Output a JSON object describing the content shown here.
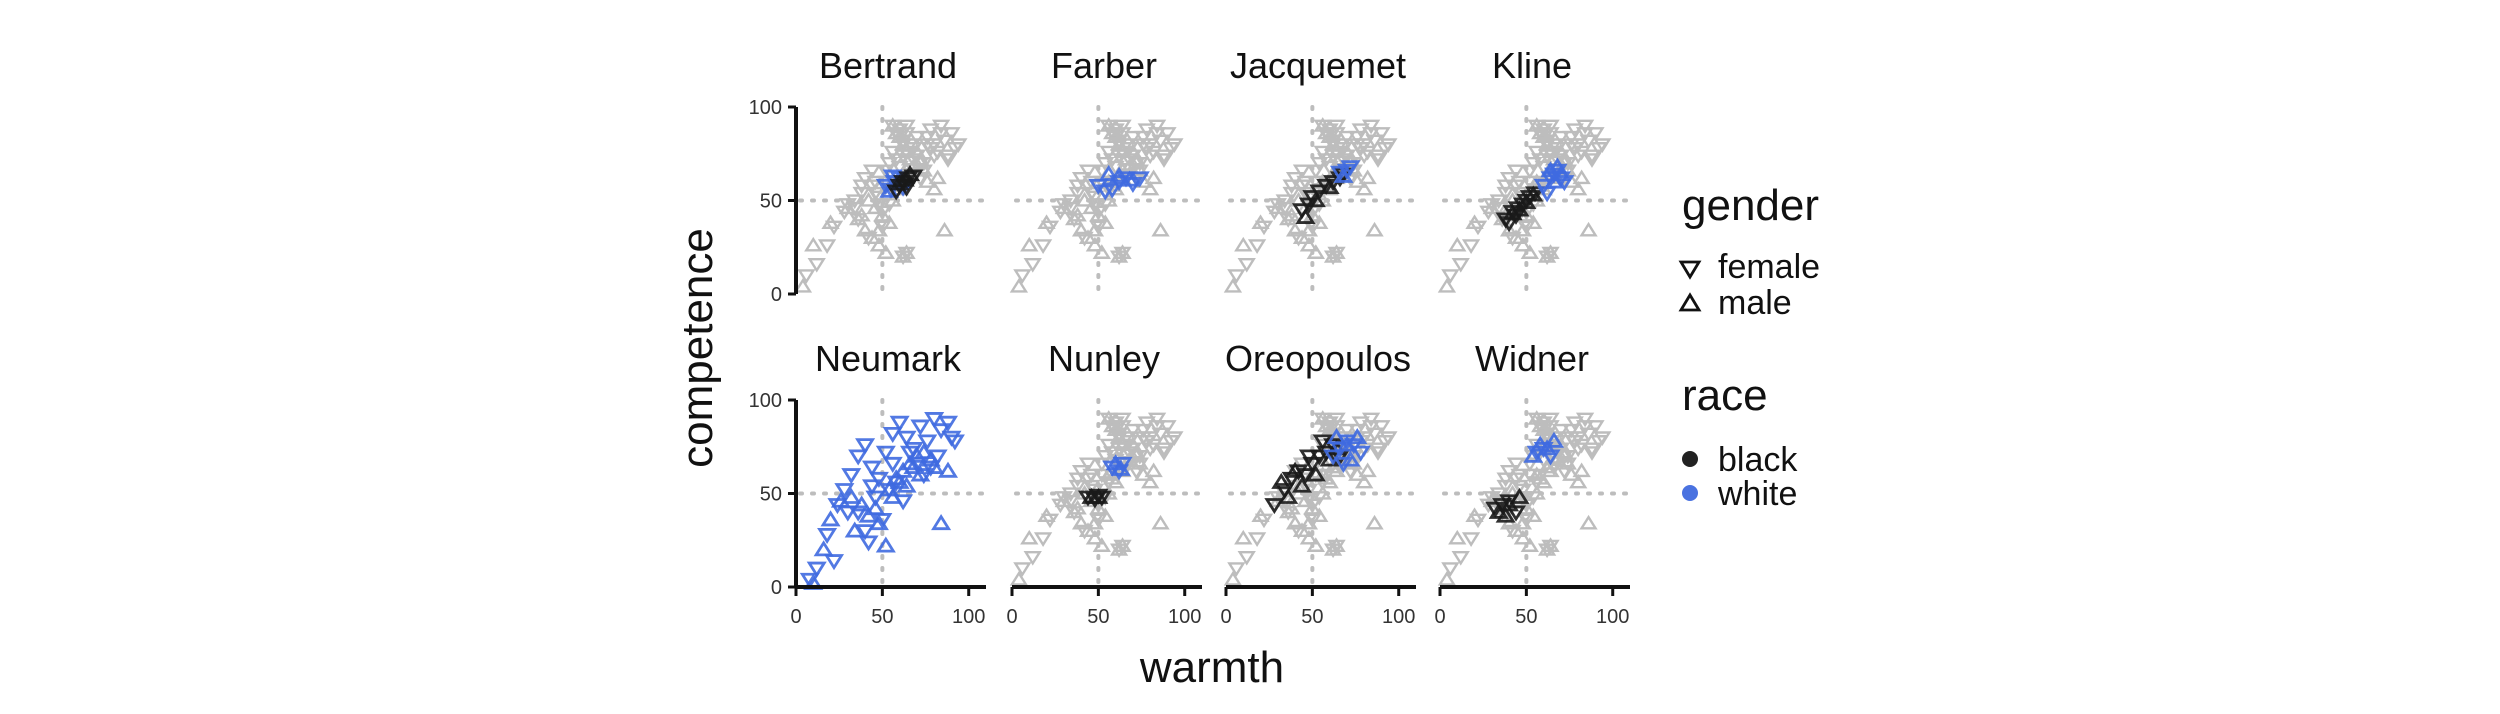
{
  "chart_data": {
    "type": "scatter",
    "xlabel": "warmth",
    "ylabel": "competence",
    "xlim": [
      0,
      110
    ],
    "ylim": [
      0,
      100
    ],
    "xticks": [
      0,
      50,
      100
    ],
    "yticks": [
      0,
      50,
      100
    ],
    "reference_lines": {
      "x": 50,
      "y": 50,
      "style": "dotted"
    },
    "grid": false,
    "legend_position": "right",
    "background_color": "#bdbdbd",
    "panel_labels": [
      "Bertrand",
      "Farber",
      "Jacquemet",
      "Kline",
      "Neumark",
      "Nunley",
      "Oreopoulos",
      "Widner"
    ],
    "panels": [
      {
        "title": "Bertrand",
        "highlight": [
          {
            "race": "white",
            "gender": "female",
            "x": [
              52,
              55,
              57,
              60,
              62,
              56
            ],
            "y": [
              58,
              56,
              60,
              62,
              57,
              63
            ]
          },
          {
            "race": "white",
            "gender": "male",
            "x": [
              54,
              58,
              61
            ],
            "y": [
              55,
              59,
              60
            ]
          },
          {
            "race": "black",
            "gender": "female",
            "x": [
              58,
              62,
              65,
              68,
              60,
              64
            ],
            "y": [
              55,
              60,
              62,
              63,
              58,
              57
            ]
          },
          {
            "race": "black",
            "gender": "male",
            "x": [
              60,
              63,
              66
            ],
            "y": [
              59,
              61,
              64
            ]
          }
        ]
      },
      {
        "title": "Farber",
        "highlight": [
          {
            "race": "white",
            "gender": "female",
            "x": [
              50,
              54,
              58,
              62,
              66,
              70,
              74
            ],
            "y": [
              58,
              55,
              56,
              60,
              62,
              59,
              62
            ]
          },
          {
            "race": "white",
            "gender": "male",
            "x": [
              56,
              62,
              68
            ],
            "y": [
              64,
              63,
              61
            ]
          }
        ]
      },
      {
        "title": "Jacquemet",
        "highlight": [
          {
            "race": "black",
            "gender": "female",
            "x": [
              44,
              48,
              50,
              54,
              58,
              62,
              66,
              68
            ],
            "y": [
              45,
              48,
              52,
              55,
              58,
              60,
              62,
              64
            ]
          },
          {
            "race": "black",
            "gender": "male",
            "x": [
              46,
              52,
              60
            ],
            "y": [
              41,
              50,
              57
            ]
          },
          {
            "race": "white",
            "gender": "female",
            "x": [
              66,
              70,
              72
            ],
            "y": [
              65,
              66,
              68
            ]
          },
          {
            "race": "white",
            "gender": "male",
            "x": [
              68
            ],
            "y": [
              63
            ]
          }
        ]
      },
      {
        "title": "Kline",
        "highlight": [
          {
            "race": "black",
            "gender": "female",
            "x": [
              38,
              42,
              45,
              48,
              50,
              52,
              55,
              40,
              44
            ],
            "y": [
              40,
              44,
              46,
              48,
              50,
              52,
              54,
              38,
              42
            ]
          },
          {
            "race": "black",
            "gender": "male",
            "x": [
              42,
              46,
              50,
              54
            ],
            "y": [
              43,
              45,
              49,
              53
            ]
          },
          {
            "race": "white",
            "gender": "female",
            "x": [
              60,
              64,
              66,
              68,
              70,
              72,
              62
            ],
            "y": [
              58,
              62,
              64,
              66,
              62,
              60,
              54
            ]
          },
          {
            "race": "white",
            "gender": "male",
            "x": [
              64,
              68,
              70,
              66
            ],
            "y": [
              66,
              68,
              64,
              60
            ]
          }
        ]
      },
      {
        "title": "Neumark",
        "highlight": [
          {
            "race": "white",
            "gender": "female",
            "x": [
              8,
              12,
              18,
              24,
              28,
              32,
              36,
              40,
              44,
              48,
              52,
              56,
              60,
              64,
              68,
              72,
              76,
              80,
              84,
              88,
              92,
              36,
              46,
              58,
              70,
              82,
              40,
              50,
              62,
              74,
              30,
              44,
              56,
              66,
              78,
              90,
              22,
              42,
              54
            ],
            "y": [
              4,
              10,
              28,
              44,
              52,
              60,
              70,
              76,
              64,
              58,
              72,
              82,
              88,
              80,
              74,
              86,
              78,
              90,
              84,
              88,
              78,
              40,
              48,
              56,
              66,
              70,
              30,
              36,
              46,
              60,
              40,
              54,
              66,
              72,
              64,
              80,
              14,
              24,
              52
            ]
          },
          {
            "race": "white",
            "gender": "male",
            "x": [
              10,
              16,
              20,
              26,
              32,
              38,
              42,
              48,
              54,
              58,
              62,
              66,
              70,
              74,
              78,
              84,
              88,
              34,
              46,
              56,
              64,
              72,
              80,
              52,
              60,
              68
            ],
            "y": [
              2,
              20,
              36,
              46,
              48,
              44,
              38,
              34,
              52,
              58,
              62,
              66,
              70,
              72,
              68,
              34,
              62,
              30,
              42,
              48,
              54,
              60,
              64,
              22,
              56,
              64
            ]
          }
        ]
      },
      {
        "title": "Nunley",
        "highlight": [
          {
            "race": "white",
            "gender": "female",
            "x": [
              58,
              62,
              64
            ],
            "y": [
              64,
              62,
              66
            ]
          },
          {
            "race": "white",
            "gender": "male",
            "x": [
              60,
              63
            ],
            "y": [
              66,
              63
            ]
          },
          {
            "race": "black",
            "gender": "female",
            "x": [
              44,
              48,
              50,
              52
            ],
            "y": [
              48,
              47,
              49,
              48
            ]
          },
          {
            "race": "black",
            "gender": "male",
            "x": [
              46,
              50
            ],
            "y": [
              48,
              48
            ]
          }
        ]
      },
      {
        "title": "Oreopoulos",
        "highlight": [
          {
            "race": "black",
            "gender": "female",
            "x": [
              28,
              34,
              38,
              42,
              46,
              50,
              54,
              58,
              62,
              66,
              48,
              56
            ],
            "y": [
              44,
              52,
              58,
              62,
              60,
              66,
              70,
              72,
              76,
              70,
              70,
              78
            ]
          },
          {
            "race": "black",
            "gender": "male",
            "x": [
              32,
              40,
              44,
              52,
              60,
              64,
              36
            ],
            "y": [
              56,
              62,
              54,
              60,
              68,
              74,
              48
            ]
          },
          {
            "race": "white",
            "gender": "female",
            "x": [
              62,
              66,
              70,
              74,
              78,
              68
            ],
            "y": [
              70,
              74,
              78,
              76,
              72,
              66
            ]
          },
          {
            "race": "white",
            "gender": "male",
            "x": [
              64,
              70,
              76,
              72
            ],
            "y": [
              80,
              76,
              80,
              68
            ]
          }
        ]
      },
      {
        "title": "Widner",
        "highlight": [
          {
            "race": "black",
            "gender": "female",
            "x": [
              32,
              36,
              40,
              44
            ],
            "y": [
              42,
              44,
              46,
              40
            ]
          },
          {
            "race": "black",
            "gender": "male",
            "x": [
              34,
              40,
              46,
              38
            ],
            "y": [
              40,
              44,
              48,
              38
            ]
          },
          {
            "race": "white",
            "gender": "female",
            "x": [
              56,
              60,
              64
            ],
            "y": [
              72,
              74,
              70
            ]
          },
          {
            "race": "white",
            "gender": "male",
            "x": [
              54,
              58,
              62,
              66
            ],
            "y": [
              70,
              76,
              74,
              78
            ]
          }
        ]
      }
    ],
    "background_points": {
      "female": {
        "x": [
          6,
          12,
          18,
          22,
          28,
          34,
          38,
          40,
          44,
          46,
          48,
          50,
          52,
          54,
          56,
          58,
          60,
          62,
          64,
          66,
          68,
          70,
          72,
          74,
          76,
          78,
          80,
          82,
          84,
          86,
          88,
          90,
          92,
          94,
          60,
          64,
          70,
          76,
          50,
          42,
          36,
          30,
          56,
          66,
          74,
          80,
          58,
          48,
          44,
          38,
          34,
          62,
          68,
          72,
          78,
          84,
          88,
          54,
          46,
          52
        ],
        "y": [
          10,
          16,
          26,
          36,
          44,
          50,
          58,
          62,
          66,
          54,
          48,
          44,
          60,
          70,
          76,
          72,
          68,
          82,
          86,
          80,
          78,
          74,
          70,
          66,
          84,
          88,
          80,
          76,
          90,
          82,
          72,
          86,
          78,
          80,
          88,
          90,
          84,
          80,
          36,
          30,
          40,
          48,
          56,
          64,
          70,
          74,
          60,
          52,
          58,
          54,
          46,
          74,
          72,
          62,
          78,
          86,
          74,
          48,
          60,
          66
        ]
      },
      "male": {
        "x": [
          4,
          10,
          20,
          30,
          36,
          40,
          44,
          48,
          52,
          56,
          60,
          64,
          68,
          72,
          76,
          80,
          86,
          42,
          46,
          50,
          54,
          58,
          62,
          66,
          70,
          74,
          38,
          48,
          56,
          64,
          72,
          82
        ],
        "y": [
          4,
          26,
          38,
          46,
          40,
          34,
          30,
          26,
          22,
          50,
          56,
          62,
          68,
          70,
          60,
          56,
          34,
          50,
          46,
          42,
          38,
          58,
          64,
          72,
          76,
          66,
          42,
          34,
          60,
          66,
          72,
          62
        ]
      },
      "star": {
        "x": [
          56,
          60,
          62,
          64,
          58
        ],
        "y": [
          90,
          84,
          80,
          76,
          86
        ]
      },
      "star_low": {
        "x": [
          62,
          64
        ],
        "y": [
          20,
          22
        ]
      }
    }
  },
  "legend": {
    "gender_title": "gender",
    "gender_items": [
      {
        "label": "female",
        "shape": "triangle-down"
      },
      {
        "label": "male",
        "shape": "triangle-up"
      }
    ],
    "race_title": "race",
    "race_items": [
      {
        "label": "black",
        "color": "#222222"
      },
      {
        "label": "white",
        "color": "#4a72e0"
      }
    ]
  },
  "colors": {
    "black": "#1a1a1a",
    "white": "#3f6ae0",
    "background_points": "#bdbdbd",
    "axis": "#111111",
    "reference": "#bdbdbd"
  }
}
